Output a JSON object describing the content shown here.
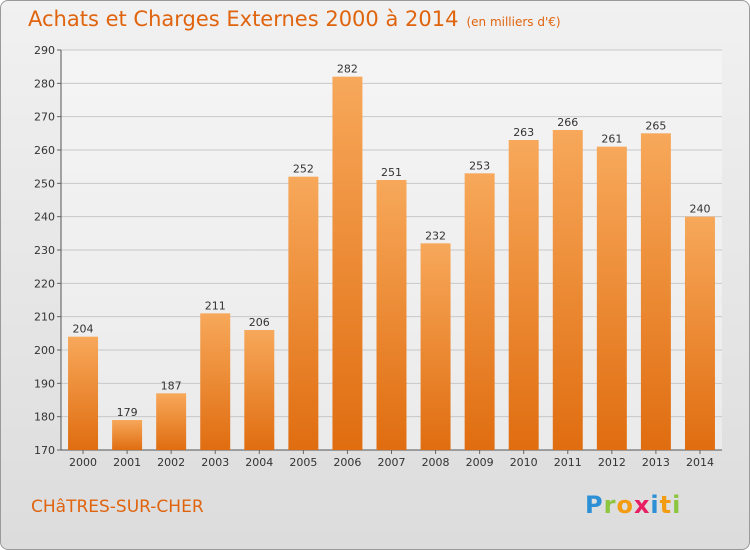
{
  "title": "Achats et Charges Externes 2000 à 2014",
  "unit": "(en milliers d'€)",
  "town": "CHâTRES-SUR-CHER",
  "logo": "Proxiti",
  "chart_data": {
    "type": "bar",
    "title": "Achats et Charges Externes 2000 à 2014",
    "subtitle": "(en milliers d'€)",
    "categories": [
      "2000",
      "2001",
      "2002",
      "2003",
      "2004",
      "2005",
      "2006",
      "2007",
      "2008",
      "2009",
      "2010",
      "2011",
      "2012",
      "2013",
      "2014"
    ],
    "values": [
      204,
      179,
      187,
      211,
      206,
      252,
      282,
      251,
      232,
      253,
      263,
      266,
      261,
      265,
      240
    ],
    "ylim": [
      170,
      290
    ],
    "yticks": [
      170,
      180,
      190,
      200,
      210,
      220,
      230,
      240,
      250,
      260,
      270,
      280,
      290
    ],
    "grid": true,
    "bar_color": "#f0801f",
    "bar_color_light": "#f7a85a"
  }
}
